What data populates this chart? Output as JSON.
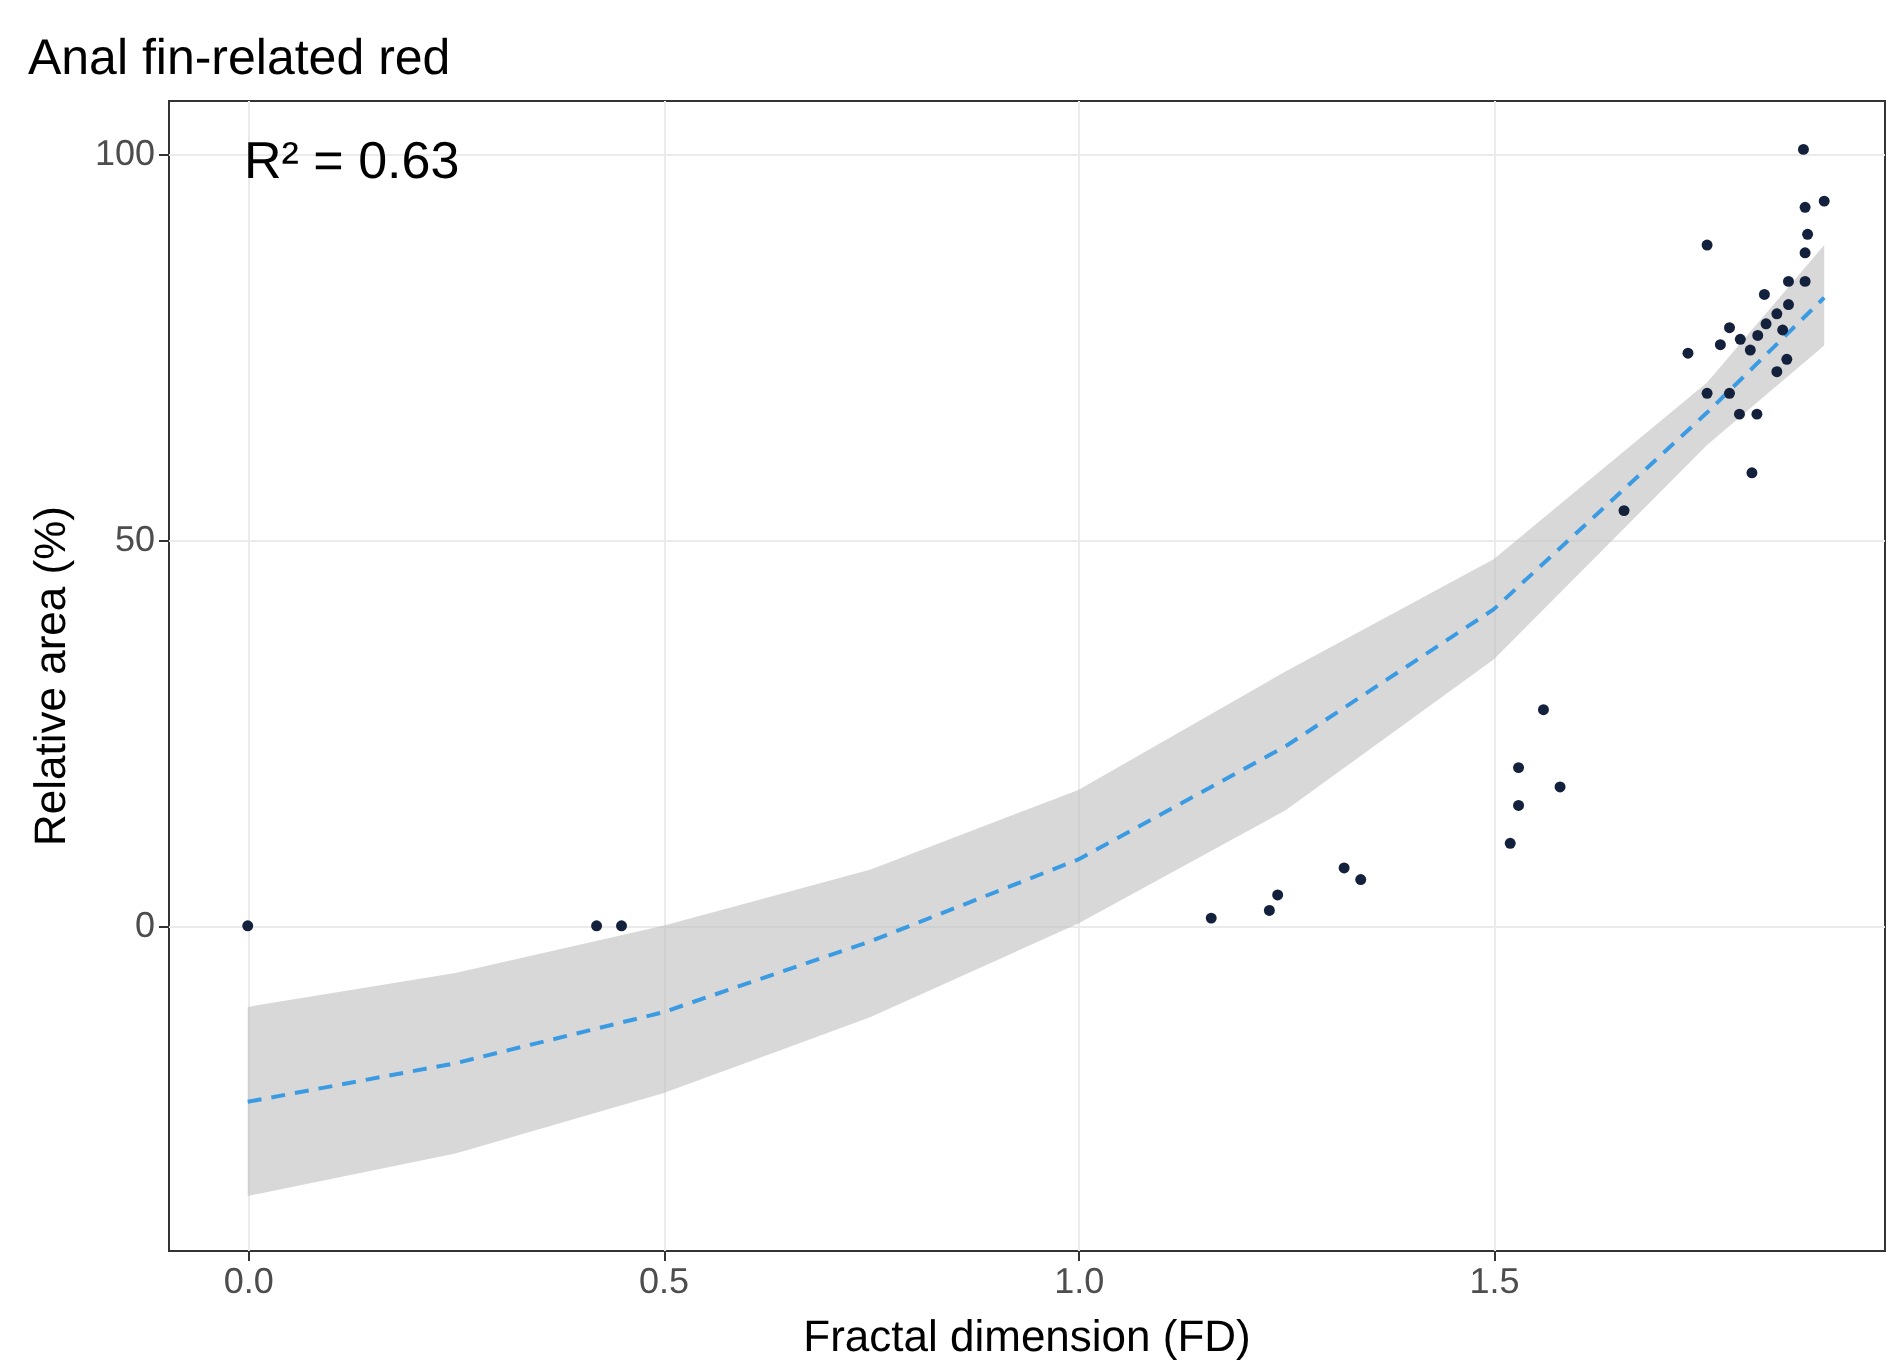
{
  "chart_data": {
    "type": "scatter",
    "title": "Anal fin-related red",
    "xlabel": "Fractal dimension (FD)",
    "ylabel": "Relative area (%)",
    "annotations": [
      "R² = 0.63"
    ],
    "xlim": [
      -0.096,
      1.97
    ],
    "ylim": [
      -42,
      107
    ],
    "xticks": [
      {
        "value": 0,
        "label": "0.0"
      },
      {
        "value": 0.5,
        "label": "0.5"
      },
      {
        "value": 1,
        "label": "1.0"
      },
      {
        "value": 1.5,
        "label": "1.5"
      }
    ],
    "yticks": [
      0,
      50,
      100
    ],
    "grid": true,
    "marker": "circle",
    "series": [
      {
        "type": "line",
        "marker": "none",
        "color": "#3a9be3",
        "line_style": "dashed",
        "x": [
          0,
          0.25,
          0.5,
          0.75,
          1.0,
          1.25,
          1.5,
          1.757,
          1.898
        ],
        "values": [
          -22.8,
          -17.8,
          -11.2,
          -2.0,
          8.6,
          23.3,
          41,
          66.5,
          81.4
        ],
        "lower": [
          -35,
          -29.5,
          -21.7,
          -11.8,
          0.3,
          15,
          34.5,
          62.3,
          75.2
        ],
        "upper": [
          -10.5,
          -6.1,
          0,
          7.3,
          17.6,
          33,
          47.5,
          70.4,
          88.2
        ]
      },
      {
        "color": "#14213d",
        "x": [
          0,
          0.42,
          0.45,
          1.16,
          1.23,
          1.24,
          1.32,
          1.34,
          1.52,
          1.53,
          1.53,
          1.56,
          1.58,
          1.657,
          1.873,
          1.875,
          1.898,
          1.878,
          1.875,
          1.757,
          1.855,
          1.875,
          1.826,
          1.855,
          1.841,
          1.828,
          1.784,
          1.848,
          1.818,
          1.797,
          1.773,
          1.734,
          1.809,
          1.853,
          1.841,
          1.757,
          1.784,
          1.796,
          1.817,
          1.811
        ],
        "values": [
          0,
          0,
          0,
          1,
          2,
          4,
          7.5,
          6,
          10.7,
          15.6,
          20.5,
          28,
          18,
          53.8,
          100.6,
          93.1,
          93.9,
          89.6,
          87.2,
          88.2,
          83.5,
          83.5,
          81.8,
          80.5,
          79.3,
          78,
          77.5,
          77.2,
          76.5,
          76,
          75.3,
          74.2,
          74.6,
          73.4,
          71.8,
          69,
          69,
          66.3,
          66.3,
          58.7
        ]
      }
    ]
  }
}
